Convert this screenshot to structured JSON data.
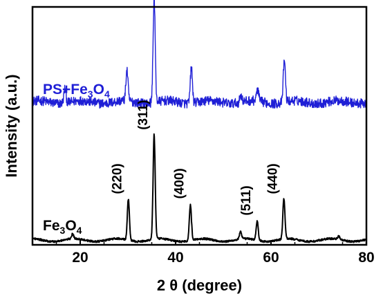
{
  "chart_data": {
    "type": "line",
    "title": "",
    "xlabel": "2 θ (degree)",
    "ylabel": "Intensity (a.u.)",
    "xlim": [
      10,
      80
    ],
    "x_ticks": [
      20,
      40,
      60,
      80
    ],
    "y_ticks_shown": false,
    "grid": false,
    "legend": "none",
    "series": [
      {
        "label_parts": [
          {
            "text": "PS+Fe",
            "sub": false
          },
          {
            "text": "3",
            "sub": true
          },
          {
            "text": "O",
            "sub": false
          },
          {
            "text": "4",
            "sub": true
          }
        ],
        "color": "#1f1fd6",
        "baseline": 0.6,
        "noise": 0.02,
        "peaks": [
          {
            "x": 16.8,
            "height": 0.06
          },
          {
            "x": 29.8,
            "height": 0.13
          },
          {
            "x": 35.5,
            "height": 0.44
          },
          {
            "x": 43.3,
            "height": 0.15
          },
          {
            "x": 53.7,
            "height": 0.03
          },
          {
            "x": 57.2,
            "height": 0.05
          },
          {
            "x": 62.8,
            "height": 0.18
          }
        ]
      },
      {
        "label_parts": [
          {
            "text": "Fe",
            "sub": false
          },
          {
            "text": "3",
            "sub": true
          },
          {
            "text": "O",
            "sub": false
          },
          {
            "text": "4",
            "sub": true
          }
        ],
        "color": "#000000",
        "baseline": 0.02,
        "noise": 0.004,
        "peaks": [
          {
            "x": 18.4,
            "height": 0.02
          },
          {
            "x": 30.1,
            "height": 0.17
          },
          {
            "x": 35.5,
            "height": 0.44
          },
          {
            "x": 43.1,
            "height": 0.15
          },
          {
            "x": 53.6,
            "height": 0.03
          },
          {
            "x": 57.1,
            "height": 0.08
          },
          {
            "x": 62.7,
            "height": 0.17
          },
          {
            "x": 74.2,
            "height": 0.015
          }
        ]
      }
    ],
    "peak_labels": [
      {
        "text": "(220)",
        "x": 30.1
      },
      {
        "text": "(311)",
        "x": 35.5
      },
      {
        "text": "(400)",
        "x": 43.1
      },
      {
        "text": "(511)",
        "x": 57.1
      },
      {
        "text": "(440)",
        "x": 62.7
      }
    ],
    "colors": {
      "ps_fe3o4": "#1f1fd6",
      "fe3o4": "#000000",
      "axis": "#000000"
    }
  }
}
